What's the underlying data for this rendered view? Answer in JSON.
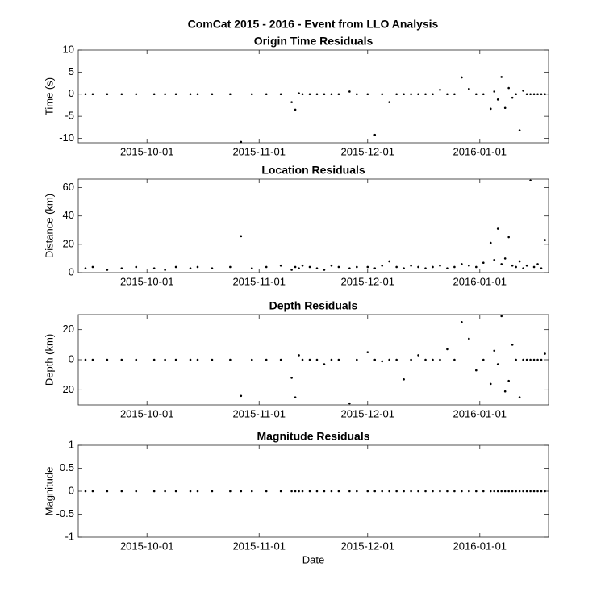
{
  "title": "ComCat 2015 - 2016 - Event from LLO Analysis",
  "chart_data": [
    {
      "type": "scatter",
      "title": "Origin Time Residuals",
      "ylabel": "Time (s)",
      "color": "#000000",
      "x": [
        "2015-09-14",
        "2015-09-16",
        "2015-09-20",
        "2015-09-24",
        "2015-09-28",
        "2015-10-03",
        "2015-10-06",
        "2015-10-09",
        "2015-10-13",
        "2015-10-15",
        "2015-10-19",
        "2015-10-24",
        "2015-10-27",
        "2015-10-30",
        "2015-11-03",
        "2015-11-07",
        "2015-11-10",
        "2015-11-11",
        "2015-11-12",
        "2015-11-13",
        "2015-11-15",
        "2015-11-17",
        "2015-11-19",
        "2015-11-21",
        "2015-11-23",
        "2015-11-26",
        "2015-11-28",
        "2015-12-01",
        "2015-12-03",
        "2015-12-05",
        "2015-12-07",
        "2015-12-09",
        "2015-12-11",
        "2015-12-13",
        "2015-12-15",
        "2015-12-17",
        "2015-12-19",
        "2015-12-21",
        "2015-12-23",
        "2015-12-25",
        "2015-12-27",
        "2015-12-29",
        "2015-12-31",
        "2016-01-02",
        "2016-01-04",
        "2016-01-05",
        "2016-01-06",
        "2016-01-07",
        "2016-01-08",
        "2016-01-09",
        "2016-01-10",
        "2016-01-11",
        "2016-01-12",
        "2016-01-13",
        "2016-01-14",
        "2016-01-15",
        "2016-01-16",
        "2016-01-17",
        "2016-01-18",
        "2016-01-19"
      ],
      "values": [
        0,
        0,
        0,
        0,
        0,
        0,
        0,
        0,
        0,
        0,
        0,
        0,
        -10.8,
        0,
        0,
        0,
        -1.8,
        -3.5,
        0.2,
        0,
        0,
        0,
        0,
        0,
        0,
        0.6,
        0,
        0,
        -9.2,
        0,
        -1.8,
        0,
        0,
        0,
        0,
        0,
        0,
        1,
        0,
        0,
        3.8,
        1.2,
        0,
        0,
        -3.3,
        0.6,
        -1.2,
        3.9,
        -3.1,
        1.4,
        -0.8,
        0,
        -8.2,
        0.8,
        0,
        0,
        0,
        0,
        0,
        0
      ],
      "xlim": [
        "2015-09-12",
        "2016-01-20"
      ],
      "xticks": [
        "2015-10-01",
        "2015-11-01",
        "2015-12-01",
        "2016-01-01"
      ],
      "ylim": [
        -11,
        10
      ],
      "yticks": [
        -10,
        -5,
        0,
        5,
        10
      ]
    },
    {
      "type": "scatter",
      "title": "Location Residuals",
      "ylabel": "Distance (km)",
      "color": "#000000",
      "x": [
        "2015-09-14",
        "2015-09-16",
        "2015-09-20",
        "2015-09-24",
        "2015-09-28",
        "2015-10-03",
        "2015-10-06",
        "2015-10-09",
        "2015-10-13",
        "2015-10-15",
        "2015-10-19",
        "2015-10-24",
        "2015-10-27",
        "2015-10-30",
        "2015-11-03",
        "2015-11-07",
        "2015-11-10",
        "2015-11-11",
        "2015-11-12",
        "2015-11-13",
        "2015-11-15",
        "2015-11-17",
        "2015-11-19",
        "2015-11-21",
        "2015-11-23",
        "2015-11-26",
        "2015-11-28",
        "2015-12-01",
        "2015-12-03",
        "2015-12-05",
        "2015-12-07",
        "2015-12-09",
        "2015-12-11",
        "2015-12-13",
        "2015-12-15",
        "2015-12-17",
        "2015-12-19",
        "2015-12-21",
        "2015-12-23",
        "2015-12-25",
        "2015-12-27",
        "2015-12-29",
        "2015-12-31",
        "2016-01-02",
        "2016-01-04",
        "2016-01-05",
        "2016-01-06",
        "2016-01-07",
        "2016-01-08",
        "2016-01-09",
        "2016-01-10",
        "2016-01-11",
        "2016-01-12",
        "2016-01-13",
        "2016-01-14",
        "2016-01-15",
        "2016-01-16",
        "2016-01-17",
        "2016-01-18",
        "2016-01-19"
      ],
      "values": [
        3,
        4,
        2,
        3,
        4,
        3,
        2,
        4,
        3,
        4,
        3,
        4,
        25.7,
        3,
        4,
        5,
        2,
        4,
        3,
        5,
        4,
        3,
        2,
        5,
        4,
        3,
        4,
        4,
        3,
        5,
        8,
        4,
        3,
        5,
        4,
        3,
        4,
        5,
        3,
        4,
        6,
        5,
        4,
        7,
        21,
        9,
        31,
        6,
        10,
        25,
        5,
        4,
        8,
        3,
        5,
        65,
        4,
        6,
        3,
        23
      ],
      "xlim": [
        "2015-09-12",
        "2016-01-20"
      ],
      "xticks": [
        "2015-10-01",
        "2015-11-01",
        "2015-12-01",
        "2016-01-01"
      ],
      "ylim": [
        0,
        66
      ],
      "yticks": [
        0,
        20,
        40,
        60
      ]
    },
    {
      "type": "scatter",
      "title": "Depth Residuals",
      "ylabel": "Depth (km)",
      "color": "#000000",
      "x": [
        "2015-09-14",
        "2015-09-16",
        "2015-09-20",
        "2015-09-24",
        "2015-09-28",
        "2015-10-03",
        "2015-10-06",
        "2015-10-09",
        "2015-10-13",
        "2015-10-15",
        "2015-10-19",
        "2015-10-24",
        "2015-10-27",
        "2015-10-30",
        "2015-11-03",
        "2015-11-07",
        "2015-11-10",
        "2015-11-11",
        "2015-11-12",
        "2015-11-13",
        "2015-11-15",
        "2015-11-17",
        "2015-11-19",
        "2015-11-21",
        "2015-11-23",
        "2015-11-26",
        "2015-11-28",
        "2015-12-01",
        "2015-12-03",
        "2015-12-05",
        "2015-12-07",
        "2015-12-09",
        "2015-12-11",
        "2015-12-13",
        "2015-12-15",
        "2015-12-17",
        "2015-12-19",
        "2015-12-21",
        "2015-12-23",
        "2015-12-25",
        "2015-12-27",
        "2015-12-29",
        "2015-12-31",
        "2016-01-02",
        "2016-01-04",
        "2016-01-05",
        "2016-01-06",
        "2016-01-07",
        "2016-01-08",
        "2016-01-09",
        "2016-01-10",
        "2016-01-11",
        "2016-01-12",
        "2016-01-13",
        "2016-01-14",
        "2016-01-15",
        "2016-01-16",
        "2016-01-17",
        "2016-01-18",
        "2016-01-19"
      ],
      "values": [
        0,
        0,
        0,
        0,
        0,
        0,
        0,
        0,
        0,
        0,
        0,
        0,
        -24,
        0,
        0,
        0,
        -12,
        -25,
        3,
        0,
        0,
        0,
        -3,
        0,
        0,
        -29,
        0,
        5,
        0,
        -1,
        0,
        0,
        -13,
        0,
        3,
        0,
        0,
        0,
        7,
        0,
        25,
        14,
        -7,
        0,
        -16,
        6,
        -3,
        29,
        -21,
        -14,
        10,
        0,
        -25,
        0,
        0,
        0,
        0,
        0,
        0,
        4
      ],
      "xlim": [
        "2015-09-12",
        "2016-01-20"
      ],
      "xticks": [
        "2015-10-01",
        "2015-11-01",
        "2015-12-01",
        "2016-01-01"
      ],
      "ylim": [
        -30,
        30
      ],
      "yticks": [
        -20,
        0,
        20
      ]
    },
    {
      "type": "scatter",
      "title": "Magnitude Residuals",
      "ylabel": "Magnitude",
      "xlabel": "Date",
      "color": "#000000",
      "x": [
        "2015-09-14",
        "2015-09-16",
        "2015-09-20",
        "2015-09-24",
        "2015-09-28",
        "2015-10-03",
        "2015-10-06",
        "2015-10-09",
        "2015-10-13",
        "2015-10-15",
        "2015-10-19",
        "2015-10-24",
        "2015-10-27",
        "2015-10-30",
        "2015-11-03",
        "2015-11-07",
        "2015-11-10",
        "2015-11-11",
        "2015-11-12",
        "2015-11-13",
        "2015-11-15",
        "2015-11-17",
        "2015-11-19",
        "2015-11-21",
        "2015-11-23",
        "2015-11-26",
        "2015-11-28",
        "2015-12-01",
        "2015-12-03",
        "2015-12-05",
        "2015-12-07",
        "2015-12-09",
        "2015-12-11",
        "2015-12-13",
        "2015-12-15",
        "2015-12-17",
        "2015-12-19",
        "2015-12-21",
        "2015-12-23",
        "2015-12-25",
        "2015-12-27",
        "2015-12-29",
        "2015-12-31",
        "2016-01-02",
        "2016-01-04",
        "2016-01-05",
        "2016-01-06",
        "2016-01-07",
        "2016-01-08",
        "2016-01-09",
        "2016-01-10",
        "2016-01-11",
        "2016-01-12",
        "2016-01-13",
        "2016-01-14",
        "2016-01-15",
        "2016-01-16",
        "2016-01-17",
        "2016-01-18",
        "2016-01-19"
      ],
      "values": [
        0,
        0,
        0,
        0,
        0,
        0,
        0,
        0,
        0,
        0,
        0,
        0,
        0,
        0,
        0,
        0,
        0,
        0,
        0,
        0,
        0,
        0,
        0,
        0,
        0,
        0,
        0,
        0,
        0,
        0,
        0,
        0,
        0,
        0,
        0,
        0,
        0,
        0,
        0,
        0,
        0,
        0,
        0,
        0,
        0,
        0,
        0,
        0,
        0,
        0,
        0,
        0,
        0,
        0,
        0,
        0,
        0,
        0,
        0,
        0
      ],
      "xlim": [
        "2015-09-12",
        "2016-01-20"
      ],
      "xticks": [
        "2015-10-01",
        "2015-11-01",
        "2015-12-01",
        "2016-01-01"
      ],
      "ylim": [
        -1,
        1
      ],
      "yticks": [
        -1,
        -0.5,
        0,
        0.5,
        1
      ]
    }
  ]
}
